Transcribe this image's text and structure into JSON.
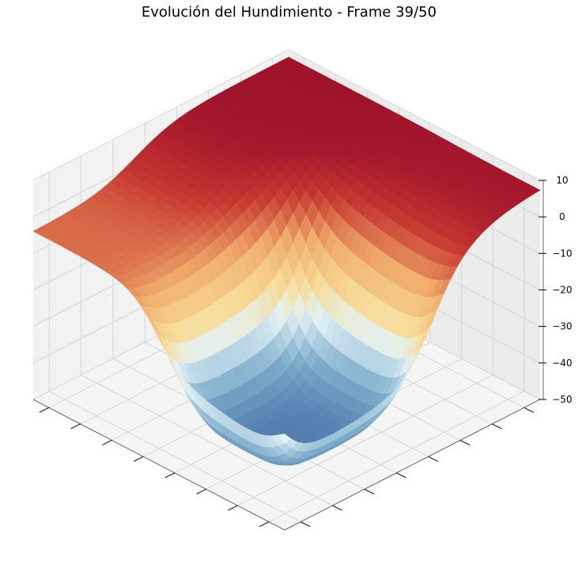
{
  "chart_data": {
    "type": "surface3d",
    "title": "Evolución del Hundimiento - Frame 39/50",
    "xlabel": "",
    "ylabel": "",
    "zlabel": "",
    "z_ticks": [
      10,
      0,
      -10,
      -20,
      -30,
      -40,
      -50
    ],
    "zlim": [
      -50,
      10
    ],
    "x_tick_count": 8,
    "y_tick_count": 8,
    "tick_labels_x": [],
    "tick_labels_y": [],
    "grid": true,
    "colormap": "RdYlBu",
    "colormap_range": [
      -55,
      10
    ],
    "pane_color": "#f2f2f2",
    "surface": {
      "description_levels": {
        "rim_plateau_z": 8,
        "basin_floor_z": -45,
        "shelf_top_z": -42,
        "left_terrace_z": -12
      },
      "x": [
        -1.0,
        -0.88,
        -0.75,
        -0.62,
        -0.5,
        -0.38,
        -0.25,
        -0.12,
        0.0,
        0.12,
        0.25,
        0.38,
        0.5,
        0.62,
        0.75,
        0.88,
        1.0
      ],
      "y": [
        -1.0,
        -0.88,
        -0.75,
        -0.62,
        -0.5,
        -0.38,
        -0.25,
        -0.12,
        0.0,
        0.12,
        0.25,
        0.38,
        0.5,
        0.62,
        0.75,
        0.88,
        1.0
      ]
    }
  }
}
